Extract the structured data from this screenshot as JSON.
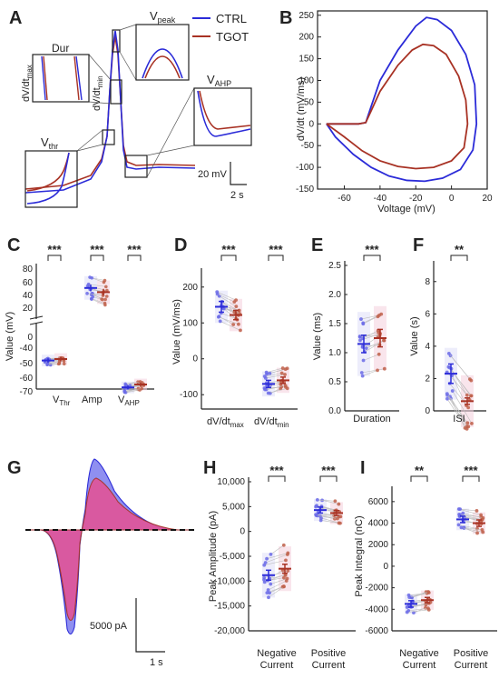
{
  "colors": {
    "ctrl": "#2b2bd8",
    "tgot": "#a83224",
    "ctrl_fill": "#8f8ff0",
    "tgot_fill": "#e0559a",
    "conn": "#bdbdbd"
  },
  "panel_a": {
    "label": "A",
    "legend": [
      "CTRL",
      "TGOT"
    ],
    "insets": {
      "vpeak": "V",
      "vpeak_sub": "peak",
      "dur": "Dur",
      "dvdtmax": "dV/dt",
      "dvdtmax_sub": "max",
      "dvdtmin": "dV/dt",
      "dvdtmin_sub": "min",
      "vahp": "V",
      "vahp_sub": "AHP",
      "vthr": "V",
      "vthr_sub": "thr"
    },
    "scale": {
      "v": "20 mV",
      "t": "2 s"
    }
  },
  "panel_b": {
    "label": "B",
    "ylabel": "dV/dt (mV/ms)",
    "xlabel": "Voltage (mV)",
    "xticks": [
      "-60",
      "-40",
      "-20",
      "0",
      "20"
    ],
    "yticks": [
      "-150",
      "-100",
      "-50",
      "0",
      "50",
      "100",
      "150",
      "200",
      "250"
    ]
  },
  "panel_c": {
    "label": "C",
    "ylabel": "Value (mV)",
    "yticks": [
      "80",
      "60",
      "40",
      "20",
      "0",
      "-40",
      "-50",
      "-60",
      "-70"
    ],
    "groups": [
      "V",
      "Amp",
      "V"
    ],
    "group_subs": [
      "Thr",
      "",
      "AHP"
    ],
    "stars": [
      "***",
      "***",
      "***"
    ]
  },
  "panel_d": {
    "label": "D",
    "ylabel": "Value (mV/ms)",
    "yticks": [
      "200",
      "100",
      "0",
      "-100"
    ],
    "groups": [
      "dV/dt",
      "dV/dt"
    ],
    "group_subs": [
      "max",
      "min"
    ],
    "stars": [
      "***",
      "***"
    ]
  },
  "panel_e": {
    "label": "E",
    "ylabel": "Value (ms)",
    "yticks": [
      "2.5",
      "2.0",
      "1.5",
      "1.0",
      "0.5",
      "0.0"
    ],
    "groups": [
      "Duration"
    ],
    "stars": [
      "***"
    ]
  },
  "panel_f": {
    "label": "F",
    "ylabel": "Value (s)",
    "yticks": [
      "8",
      "6",
      "4",
      "2",
      "0"
    ],
    "groups": [
      "ISI"
    ],
    "stars": [
      "**"
    ]
  },
  "panel_g": {
    "label": "G",
    "scale": {
      "i": "5000 pA",
      "t": "1 s"
    }
  },
  "panel_h": {
    "label": "H",
    "ylabel": "Peak Amplitude (pA)",
    "yticks": [
      "10,000",
      "5,000",
      "0",
      "-5,000",
      "-10,000",
      "-15,000",
      "-20,000"
    ],
    "groups": [
      "Negative",
      "Positive"
    ],
    "groups2": [
      "Current",
      "Current"
    ],
    "stars": [
      "***",
      "***"
    ]
  },
  "panel_i": {
    "label": "I",
    "ylabel": "Peak Integral (nC)",
    "yticks": [
      "6000",
      "4000",
      "2000",
      "0",
      "-2000",
      "-4000",
      "-6000"
    ],
    "groups": [
      "Negative",
      "Positive"
    ],
    "groups2": [
      "Current",
      "Current"
    ],
    "stars": [
      "**",
      "***"
    ]
  },
  "chart_data": [
    {
      "panel": "B",
      "type": "line",
      "xlabel": "Voltage (mV)",
      "ylabel": "dV/dt (mV/ms)",
      "xlim": [
        -75,
        20
      ],
      "ylim": [
        -150,
        260
      ],
      "series": [
        {
          "name": "CTRL",
          "x": [
            -70,
            -52,
            -48,
            -45,
            -40,
            -30,
            -20,
            -14,
            -8,
            0,
            8,
            13,
            14,
            12,
            5,
            -5,
            -15,
            -25,
            -35,
            -45,
            -55,
            -65,
            -70
          ],
          "y": [
            0,
            0,
            3,
            40,
            100,
            170,
            225,
            245,
            240,
            215,
            160,
            90,
            0,
            -60,
            -105,
            -125,
            -132,
            -130,
            -120,
            -100,
            -70,
            -30,
            0
          ]
        },
        {
          "name": "TGOT",
          "x": [
            -70,
            -52,
            -48,
            -45,
            -40,
            -30,
            -22,
            -16,
            -10,
            -3,
            4,
            8,
            9,
            7,
            0,
            -10,
            -20,
            -30,
            -40,
            -50,
            -60,
            -70
          ],
          "y": [
            0,
            0,
            3,
            30,
            75,
            135,
            170,
            183,
            180,
            160,
            110,
            55,
            0,
            -55,
            -85,
            -100,
            -103,
            -98,
            -85,
            -62,
            -30,
            0
          ]
        }
      ]
    },
    {
      "panel": "C",
      "type": "scatter",
      "categories": [
        "VThr",
        "Amp",
        "VAHP"
      ],
      "series": [
        {
          "name": "CTRL",
          "mean": [
            -48.5,
            57.5,
            -67
          ],
          "sem": [
            1.5,
            4,
            1.3
          ]
        },
        {
          "name": "TGOT",
          "mean": [
            -47.5,
            52.5,
            -65
          ],
          "sem": [
            1.5,
            4,
            1.3
          ]
        }
      ]
    },
    {
      "panel": "D",
      "type": "scatter",
      "categories": [
        "dV/dtmax",
        "dV/dtmin"
      ],
      "ylim": [
        -140,
        240
      ],
      "series": [
        {
          "name": "CTRL",
          "mean": [
            145,
            -70
          ],
          "sem": [
            15,
            10
          ]
        },
        {
          "name": "TGOT",
          "mean": [
            122,
            -60
          ],
          "sem": [
            13,
            9
          ]
        }
      ]
    },
    {
      "panel": "E",
      "type": "scatter",
      "categories": [
        "Duration"
      ],
      "ylim": [
        0,
        2.5
      ],
      "series": [
        {
          "name": "CTRL",
          "mean": [
            1.15
          ],
          "sem": [
            0.15
          ]
        },
        {
          "name": "TGOT",
          "mean": [
            1.25
          ],
          "sem": [
            0.15
          ]
        }
      ]
    },
    {
      "panel": "F",
      "type": "scatter",
      "categories": [
        "ISI"
      ],
      "ylim": [
        0,
        9
      ],
      "series": [
        {
          "name": "CTRL",
          "mean": [
            2.3
          ],
          "sem": [
            0.6
          ]
        },
        {
          "name": "TGOT",
          "mean": [
            0.6
          ],
          "sem": [
            0.2
          ]
        }
      ]
    },
    {
      "panel": "H",
      "type": "scatter",
      "categories": [
        "Negative Current",
        "Positive Current"
      ],
      "ylim": [
        -20000,
        10000
      ],
      "series": [
        {
          "name": "CTRL",
          "mean": [
            -8800,
            4300
          ],
          "sem": [
            1000,
            600
          ]
        },
        {
          "name": "TGOT",
          "mean": [
            -7500,
            3700
          ],
          "sem": [
            900,
            500
          ]
        }
      ]
    },
    {
      "panel": "I",
      "type": "scatter",
      "categories": [
        "Negative Current",
        "Positive Current"
      ],
      "ylim": [
        -6000,
        7000
      ],
      "series": [
        {
          "name": "CTRL",
          "mean": [
            -3500,
            4350
          ],
          "sem": [
            300,
            300
          ]
        },
        {
          "name": "TGOT",
          "mean": [
            -3150,
            4000
          ],
          "sem": [
            250,
            300
          ]
        }
      ]
    }
  ]
}
